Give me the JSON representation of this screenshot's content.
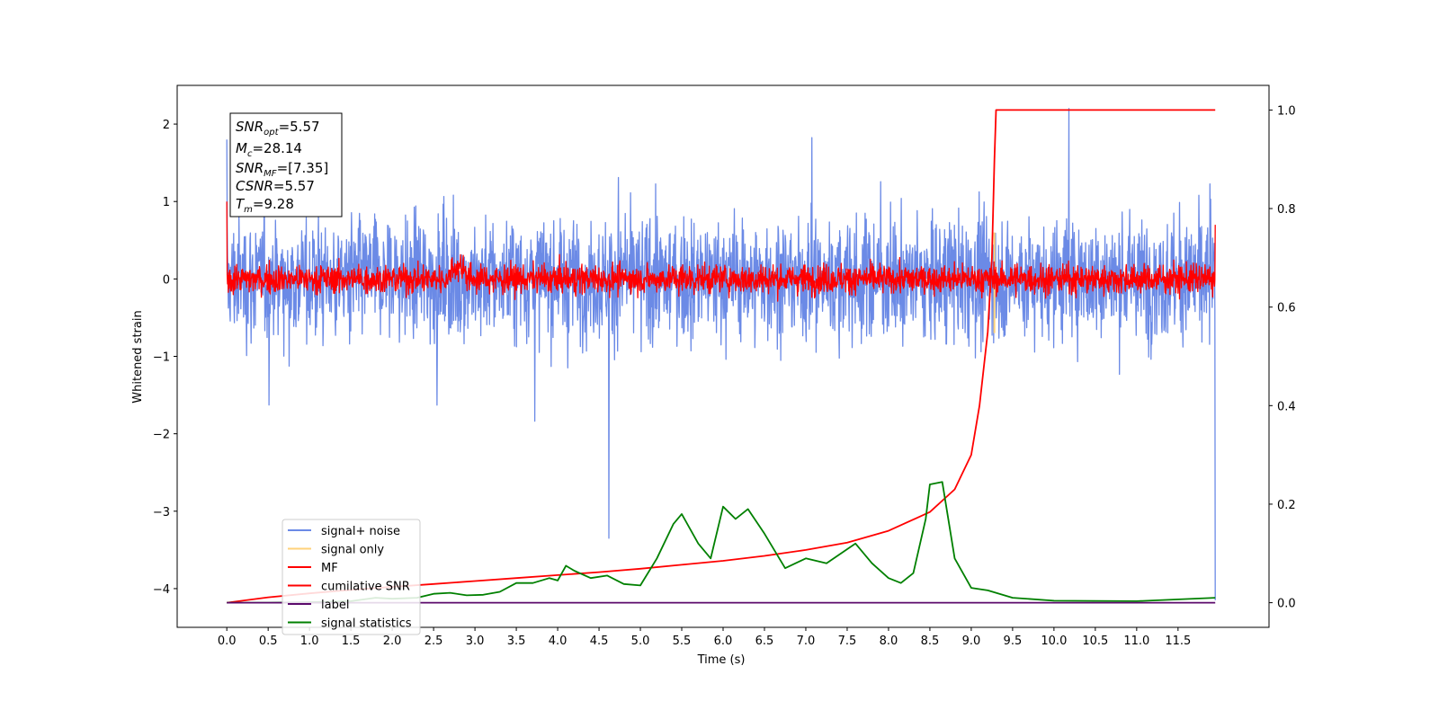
{
  "chart_data": {
    "type": "line",
    "xlabel": "Time (s)",
    "ylabel": "Whitened strain",
    "xlim": [
      -0.6,
      12.6
    ],
    "ylim": [
      -4.5,
      2.5
    ],
    "y2lim": [
      -0.05,
      1.05
    ],
    "x_ticks": [
      "0.0",
      "0.5",
      "1.0",
      "1.5",
      "2.0",
      "2.5",
      "3.0",
      "3.5",
      "4.0",
      "4.5",
      "5.0",
      "5.5",
      "6.0",
      "6.5",
      "7.0",
      "7.5",
      "8.0",
      "8.5",
      "9.0",
      "9.5",
      "10.0",
      "10.5",
      "11.0",
      "11.5"
    ],
    "y_ticks": [
      "2",
      "1",
      "0",
      "−1",
      "−2",
      "−3",
      "−4"
    ],
    "y2_ticks": [
      "1.0",
      "0.8",
      "0.6",
      "0.4",
      "0.2",
      "0.0"
    ],
    "stats_box": {
      "snr_opt": "=5.57",
      "mc": "=28.14",
      "snr_mf": "=[7.35]",
      "csnr": "=5.57",
      "tm": "=9.28"
    },
    "legend": {
      "placement": "lower-left",
      "entries": [
        "signal+ noise",
        "signal only",
        "MF",
        "cumilative SNR",
        "label",
        "signal statistics"
      ]
    },
    "colors": {
      "signal_noise": "#6b8ae6",
      "signal_only": "#ffd27a",
      "mf": "#ff0000",
      "cumulative_snr": "#ff0000",
      "label": "#5b0a6b",
      "signal_statistics": "#008000"
    },
    "series": [
      {
        "name": "cumilative SNR",
        "axis": "right",
        "points": [
          [
            0.0,
            0.0
          ],
          [
            0.5,
            0.011
          ],
          [
            1.0,
            0.019
          ],
          [
            1.5,
            0.026
          ],
          [
            2.0,
            0.032
          ],
          [
            2.5,
            0.038
          ],
          [
            3.0,
            0.044
          ],
          [
            3.5,
            0.05
          ],
          [
            4.0,
            0.056
          ],
          [
            4.5,
            0.062
          ],
          [
            5.0,
            0.069
          ],
          [
            5.5,
            0.077
          ],
          [
            6.0,
            0.085
          ],
          [
            6.5,
            0.095
          ],
          [
            7.0,
            0.107
          ],
          [
            7.5,
            0.122
          ],
          [
            8.0,
            0.146
          ],
          [
            8.5,
            0.184
          ],
          [
            8.8,
            0.23
          ],
          [
            9.0,
            0.3
          ],
          [
            9.1,
            0.4
          ],
          [
            9.2,
            0.55
          ],
          [
            9.25,
            0.7
          ],
          [
            9.28,
            0.9
          ],
          [
            9.3,
            1.0
          ],
          [
            11.95,
            1.0
          ]
        ]
      },
      {
        "name": "signal statistics",
        "axis": "right",
        "points": [
          [
            0.0,
            0.0
          ],
          [
            0.5,
            0.0
          ],
          [
            1.0,
            0.001
          ],
          [
            1.5,
            0.003
          ],
          [
            1.8,
            0.01
          ],
          [
            2.0,
            0.008
          ],
          [
            2.3,
            0.01
          ],
          [
            2.5,
            0.018
          ],
          [
            2.7,
            0.02
          ],
          [
            2.9,
            0.015
          ],
          [
            3.1,
            0.016
          ],
          [
            3.3,
            0.022
          ],
          [
            3.5,
            0.04
          ],
          [
            3.7,
            0.04
          ],
          [
            3.9,
            0.05
          ],
          [
            4.0,
            0.045
          ],
          [
            4.1,
            0.075
          ],
          [
            4.2,
            0.065
          ],
          [
            4.4,
            0.05
          ],
          [
            4.6,
            0.055
          ],
          [
            4.8,
            0.038
          ],
          [
            5.0,
            0.035
          ],
          [
            5.2,
            0.09
          ],
          [
            5.4,
            0.16
          ],
          [
            5.5,
            0.18
          ],
          [
            5.7,
            0.12
          ],
          [
            5.85,
            0.09
          ],
          [
            6.0,
            0.195
          ],
          [
            6.15,
            0.17
          ],
          [
            6.3,
            0.19
          ],
          [
            6.5,
            0.14
          ],
          [
            6.75,
            0.07
          ],
          [
            7.0,
            0.09
          ],
          [
            7.25,
            0.08
          ],
          [
            7.6,
            0.12
          ],
          [
            7.8,
            0.08
          ],
          [
            8.0,
            0.05
          ],
          [
            8.15,
            0.04
          ],
          [
            8.3,
            0.06
          ],
          [
            8.45,
            0.17
          ],
          [
            8.5,
            0.24
          ],
          [
            8.65,
            0.245
          ],
          [
            8.8,
            0.09
          ],
          [
            9.0,
            0.03
          ],
          [
            9.2,
            0.025
          ],
          [
            9.5,
            0.01
          ],
          [
            10.0,
            0.004
          ],
          [
            11.0,
            0.003
          ],
          [
            11.95,
            0.01
          ]
        ]
      },
      {
        "name": "label",
        "axis": "right",
        "points": [
          [
            0.0,
            0.0
          ],
          [
            11.95,
            0.0
          ]
        ]
      }
    ]
  }
}
